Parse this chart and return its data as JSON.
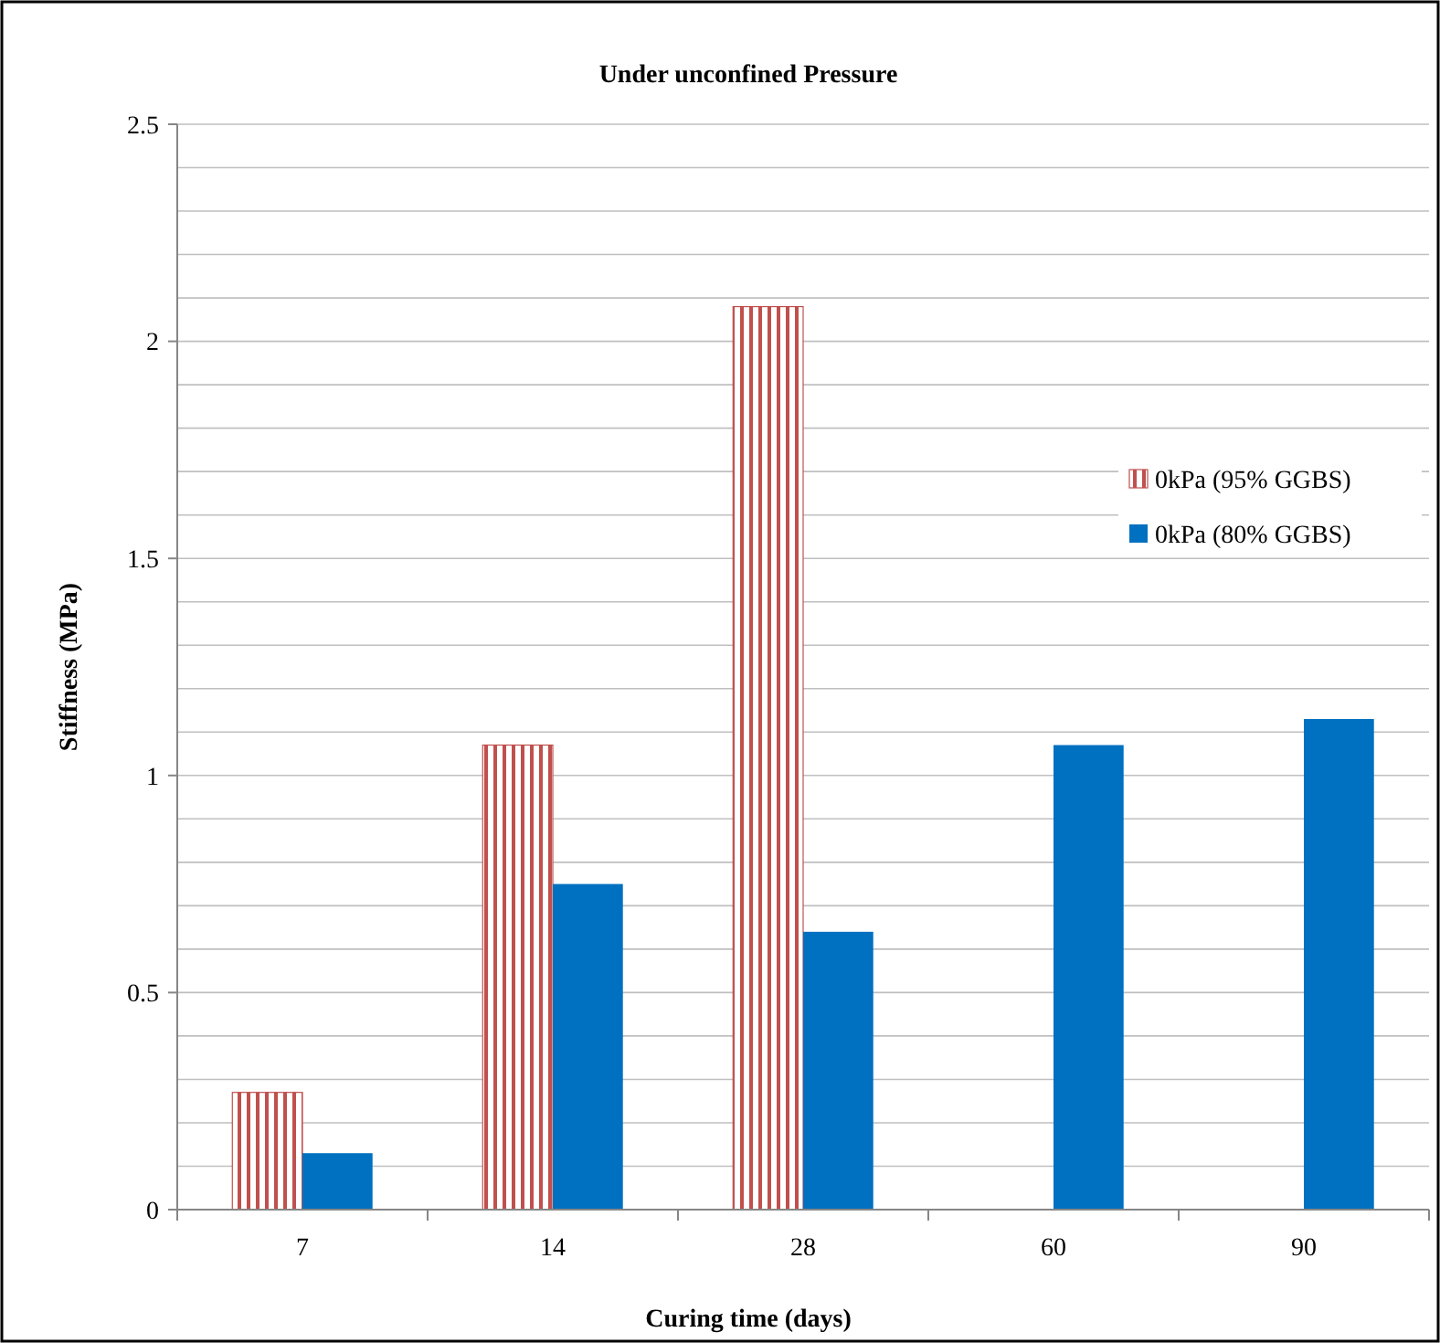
{
  "chart_data": {
    "type": "bar",
    "title": "Under unconfined Pressure",
    "xlabel": "Curing time (days)",
    "ylabel": "Stiffness (MPa)",
    "categories": [
      "7",
      "14",
      "28",
      "60",
      "90"
    ],
    "series": [
      {
        "name": "0kPa (95% GGBS)",
        "color": "#c0504d",
        "values": [
          0.27,
          1.07,
          2.08,
          null,
          null
        ]
      },
      {
        "name": "0kPa (80% GGBS)",
        "color": "#0070c0",
        "values": [
          0.13,
          0.75,
          0.64,
          1.07,
          1.13
        ]
      }
    ],
    "ylim": [
      0,
      2.5
    ],
    "yticks": [
      0,
      {
        "value": 0.1,
        "label": null
      },
      {
        "value": 0.2,
        "label": null
      },
      {
        "value": 0.3,
        "label": null
      },
      {
        "value": 0.4,
        "label": null
      },
      0.5,
      {
        "value": 0.6,
        "label": null
      },
      {
        "value": 0.7,
        "label": null
      },
      {
        "value": 0.8,
        "label": null
      },
      {
        "value": 0.9,
        "label": null
      },
      1,
      {
        "value": 1.1,
        "label": null
      },
      {
        "value": 1.2,
        "label": null
      },
      {
        "value": 1.3,
        "label": null
      },
      {
        "value": 1.4,
        "label": null
      },
      1.5,
      {
        "value": 1.6,
        "label": null
      },
      {
        "value": 1.7,
        "label": null
      },
      {
        "value": 1.8,
        "label": null
      },
      {
        "value": 1.9,
        "label": null
      },
      2,
      {
        "value": 2.1,
        "label": null
      },
      {
        "value": 2.2,
        "label": null
      },
      {
        "value": 2.3,
        "label": null
      },
      {
        "value": 2.4,
        "label": null
      },
      2.5
    ],
    "grid": "y",
    "legend": "right"
  }
}
